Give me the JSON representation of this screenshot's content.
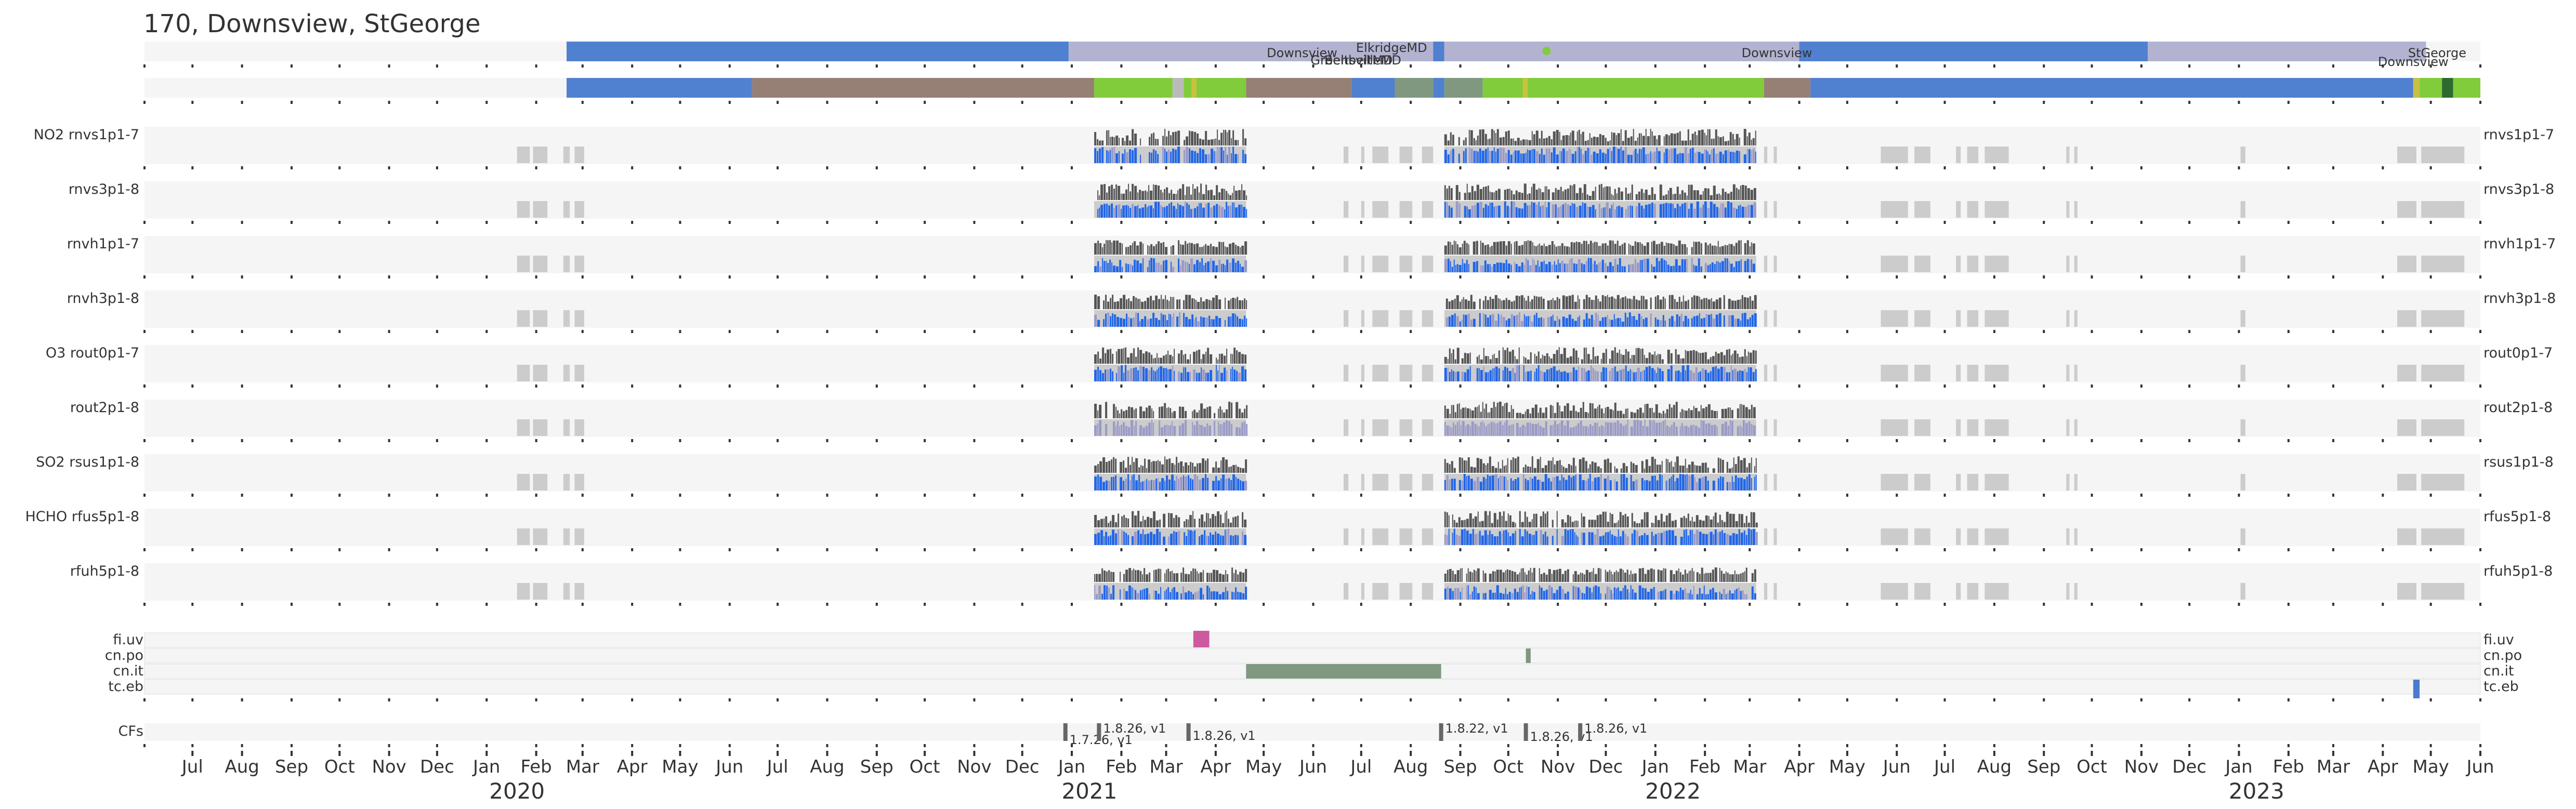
{
  "title": "170, Downsview, StGeorge",
  "colors": {
    "band_bg": "#f5f5f5",
    "location_blue": "#5080d0",
    "location_lav": "#b3b3d1",
    "status_brown": "#968076",
    "status_green": "#80cc3a",
    "status_sage": "#809880",
    "status_darkgreen": "#2d6a2d",
    "status_gray": "#bbbbbb",
    "status_olive": "#c8c040",
    "data_dark": "#555555",
    "data_blue": "#2166e8",
    "data_lav": "#9a9ac8",
    "missing_gray": "#cccccc",
    "flag_pink": "#cc5aa0",
    "flag_sage": "#7f987f",
    "flag_blue": "#4a7bd0",
    "cf_bar": "#666666"
  },
  "chart_data": {
    "type": "timeline",
    "title": "170, Downsview, StGeorge",
    "time_start": "2019-06-01",
    "time_end": "2023-06-01",
    "x_tick_labels": [
      "Jul",
      "Aug",
      "Sep",
      "Oct",
      "Nov",
      "Dec",
      "Jan",
      "Feb",
      "Mar",
      "Apr",
      "May",
      "Jun",
      "Jul",
      "Aug",
      "Sep",
      "Oct",
      "Nov",
      "Dec",
      "Jan",
      "Feb",
      "Mar",
      "Apr",
      "May",
      "Jun",
      "Jul",
      "Aug",
      "Sep",
      "Oct",
      "Nov",
      "Dec",
      "Jan",
      "Feb",
      "Mar",
      "Apr",
      "May",
      "Jun",
      "Jul",
      "Aug",
      "Sep",
      "Oct",
      "Nov",
      "Dec",
      "Jan",
      "Feb",
      "Mar",
      "Apr",
      "May",
      "Jun"
    ],
    "year_labels": [
      "2020",
      "2021",
      "2022",
      "2023"
    ],
    "location_row": {
      "segments": [
        {
          "start": "2020-02-20",
          "end": "2020-12-30",
          "color": "blue"
        },
        {
          "start": "2020-12-30",
          "end": "2021-07-01",
          "color": "lav"
        },
        {
          "start": "2021-07-01",
          "end": "2021-08-15",
          "color": "lav"
        },
        {
          "start": "2021-08-15",
          "end": "2021-08-22",
          "color": "blue"
        },
        {
          "start": "2021-08-22",
          "end": "2022-04-01",
          "color": "lav"
        },
        {
          "start": "2022-04-01",
          "end": "2022-11-05",
          "color": "blue"
        },
        {
          "start": "2022-11-05",
          "end": "2023-04-28",
          "color": "lav"
        }
      ],
      "labels": [
        {
          "date": "2021-07-20",
          "text": "ElkridgeMD"
        },
        {
          "date": "2021-05-25",
          "text": "Downsview"
        },
        {
          "date": "2021-06-25",
          "text": "GreenbeltMD"
        },
        {
          "date": "2021-07-02",
          "text": "BeltsvilleMD"
        },
        {
          "date": "2022-03-18",
          "text": "Downsview"
        },
        {
          "date": "2023-04-20",
          "text": "Downsview"
        },
        {
          "date": "2023-05-05",
          "text": "StGeorge"
        }
      ],
      "marks": [
        {
          "date": "2021-10-25",
          "color": "green"
        }
      ]
    },
    "status_row": [
      {
        "start": "2020-02-20",
        "end": "2020-06-15",
        "color": "blue"
      },
      {
        "start": "2020-06-15",
        "end": "2021-01-15",
        "color": "brown"
      },
      {
        "start": "2021-01-15",
        "end": "2021-03-05",
        "color": "green"
      },
      {
        "start": "2021-03-05",
        "end": "2021-03-12",
        "color": "gray"
      },
      {
        "start": "2021-03-12",
        "end": "2021-03-17",
        "color": "green"
      },
      {
        "start": "2021-03-17",
        "end": "2021-03-20",
        "color": "olive"
      },
      {
        "start": "2021-03-20",
        "end": "2021-04-20",
        "color": "green"
      },
      {
        "start": "2021-04-20",
        "end": "2021-06-25",
        "color": "brown"
      },
      {
        "start": "2021-06-25",
        "end": "2021-07-22",
        "color": "blue"
      },
      {
        "start": "2021-07-22",
        "end": "2021-08-15",
        "color": "sage"
      },
      {
        "start": "2021-08-15",
        "end": "2021-08-22",
        "color": "blue"
      },
      {
        "start": "2021-08-22",
        "end": "2021-09-15",
        "color": "sage"
      },
      {
        "start": "2021-09-15",
        "end": "2021-10-10",
        "color": "green"
      },
      {
        "start": "2021-10-10",
        "end": "2021-10-13",
        "color": "olive"
      },
      {
        "start": "2021-10-13",
        "end": "2022-03-10",
        "color": "green"
      },
      {
        "start": "2022-03-10",
        "end": "2022-04-08",
        "color": "brown"
      },
      {
        "start": "2022-04-08",
        "end": "2023-04-20",
        "color": "blue"
      },
      {
        "start": "2023-04-20",
        "end": "2023-04-24",
        "color": "olive"
      },
      {
        "start": "2023-04-24",
        "end": "2023-05-08",
        "color": "green"
      },
      {
        "start": "2023-05-08",
        "end": "2023-05-15",
        "color": "darkgreen"
      },
      {
        "start": "2023-05-15",
        "end": "2023-06-01",
        "color": "green"
      }
    ],
    "data_rows": [
      {
        "left_label": "NO2  rnvs1p1-7",
        "right_label": "rnvs1p1-7",
        "style": "blue"
      },
      {
        "left_label": "rnvs3p1-8",
        "right_label": "rnvs3p1-8",
        "style": "blue"
      },
      {
        "left_label": "rnvh1p1-7",
        "right_label": "rnvh1p1-7",
        "style": "heavy"
      },
      {
        "left_label": "rnvh3p1-8",
        "right_label": "rnvh3p1-8",
        "style": "heavy"
      },
      {
        "left_label": "O3  rout0p1-7",
        "right_label": "rout0p1-7",
        "style": "blue"
      },
      {
        "left_label": "rout2p1-8",
        "right_label": "rout2p1-8",
        "style": "lav"
      },
      {
        "left_label": "SO2  rsus1p1-8",
        "right_label": "rsus1p1-8",
        "style": "blue"
      },
      {
        "left_label": "HCHO  rfus5p1-8",
        "right_label": "rfus5p1-8",
        "style": "blue"
      },
      {
        "left_label": "rfuh5p1-8",
        "right_label": "rfuh5p1-8",
        "style": "heavy"
      }
    ],
    "data_periods": [
      {
        "start": "2021-01-15",
        "end": "2021-04-20"
      },
      {
        "start": "2021-08-22",
        "end": "2022-03-05"
      }
    ],
    "missing_blocks": [
      {
        "start": "2020-01-20",
        "end": "2020-01-28"
      },
      {
        "start": "2020-01-30",
        "end": "2020-02-08"
      },
      {
        "start": "2020-02-18",
        "end": "2020-02-22"
      },
      {
        "start": "2020-02-25",
        "end": "2020-03-02"
      },
      {
        "start": "2021-03-08",
        "end": "2021-03-15"
      },
      {
        "start": "2021-06-20",
        "end": "2021-06-23"
      },
      {
        "start": "2021-07-01",
        "end": "2021-07-03"
      },
      {
        "start": "2021-07-08",
        "end": "2021-07-18"
      },
      {
        "start": "2021-07-25",
        "end": "2021-08-02"
      },
      {
        "start": "2021-08-08",
        "end": "2021-08-15"
      },
      {
        "start": "2022-03-10",
        "end": "2022-03-12"
      },
      {
        "start": "2022-03-16",
        "end": "2022-03-18"
      },
      {
        "start": "2022-05-22",
        "end": "2022-06-08"
      },
      {
        "start": "2022-06-12",
        "end": "2022-06-22"
      },
      {
        "start": "2022-07-08",
        "end": "2022-07-11"
      },
      {
        "start": "2022-07-15",
        "end": "2022-07-22"
      },
      {
        "start": "2022-07-26",
        "end": "2022-08-10"
      },
      {
        "start": "2022-09-15",
        "end": "2022-09-17"
      },
      {
        "start": "2022-09-20",
        "end": "2022-09-22"
      },
      {
        "start": "2023-01-02",
        "end": "2023-01-05"
      },
      {
        "start": "2023-04-10",
        "end": "2023-04-22"
      },
      {
        "start": "2023-04-25",
        "end": "2023-05-22"
      }
    ],
    "flag_rows": [
      {
        "name": "fi.uv",
        "intervals": [
          {
            "start": "2021-03-18",
            "end": "2021-03-28",
            "color": "pink"
          }
        ]
      },
      {
        "name": "cn.po",
        "intervals": [
          {
            "start": "2021-10-12",
            "end": "2021-10-15",
            "color": "sage"
          }
        ]
      },
      {
        "name": "cn.it",
        "intervals": [
          {
            "start": "2021-04-20",
            "end": "2021-08-20",
            "color": "sage"
          }
        ]
      },
      {
        "name": "tc.eb",
        "intervals": [
          {
            "start": "2023-04-20",
            "end": "2023-04-24",
            "color": "blue"
          }
        ]
      }
    ],
    "cf_label": "CFs",
    "cf_events": [
      {
        "date": "2020-12-28",
        "label": "1.7.26, v1"
      },
      {
        "date": "2021-01-18",
        "label": "1.8.26, v1"
      },
      {
        "date": "2021-03-15",
        "label": "1.8.26, v1"
      },
      {
        "date": "2021-08-20",
        "label": "1.8.22, v1"
      },
      {
        "date": "2021-10-12",
        "label": "1.8.26, v1"
      },
      {
        "date": "2021-11-15",
        "label": "1.8.26, v1"
      }
    ]
  }
}
